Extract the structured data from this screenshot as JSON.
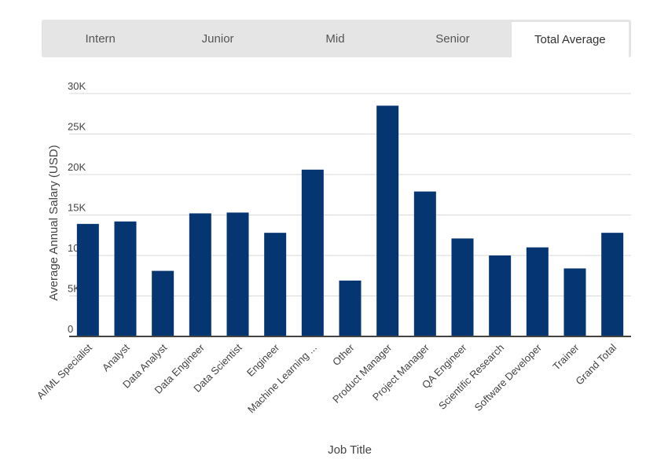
{
  "tabs": [
    {
      "label": "Intern",
      "active": false
    },
    {
      "label": "Junior",
      "active": false
    },
    {
      "label": "Mid",
      "active": false
    },
    {
      "label": "Senior",
      "active": false
    },
    {
      "label": "Total Average",
      "active": true
    }
  ],
  "colors": {
    "bar": "#063672",
    "grid": "#d9d9d9",
    "axis": "#444444"
  },
  "chart_data": {
    "type": "bar",
    "title": "",
    "xlabel": "Job Title",
    "ylabel": "Average Annual Salary (USD)",
    "ylim": [
      0,
      30000
    ],
    "yticks": [
      0,
      5000,
      10000,
      15000,
      20000,
      25000,
      30000
    ],
    "ytick_labels": [
      "0",
      "5K",
      "10K",
      "15K",
      "20K",
      "25K",
      "30K"
    ],
    "grid": true,
    "categories": [
      "AI/ML Specialist",
      "Analyst",
      "Data Analyst",
      "Data Engineer",
      "Data Scientist",
      "Engineer",
      "Machine Learning ...",
      "Other",
      "Product Manager",
      "Project Manager",
      "QA Engineer",
      "Scientific Research",
      "Software Developer",
      "Trainer",
      "Grand Total"
    ],
    "values": [
      13900,
      14200,
      8100,
      15200,
      15300,
      12800,
      20600,
      6900,
      28500,
      17900,
      12100,
      10000,
      11000,
      8400,
      12800
    ]
  }
}
